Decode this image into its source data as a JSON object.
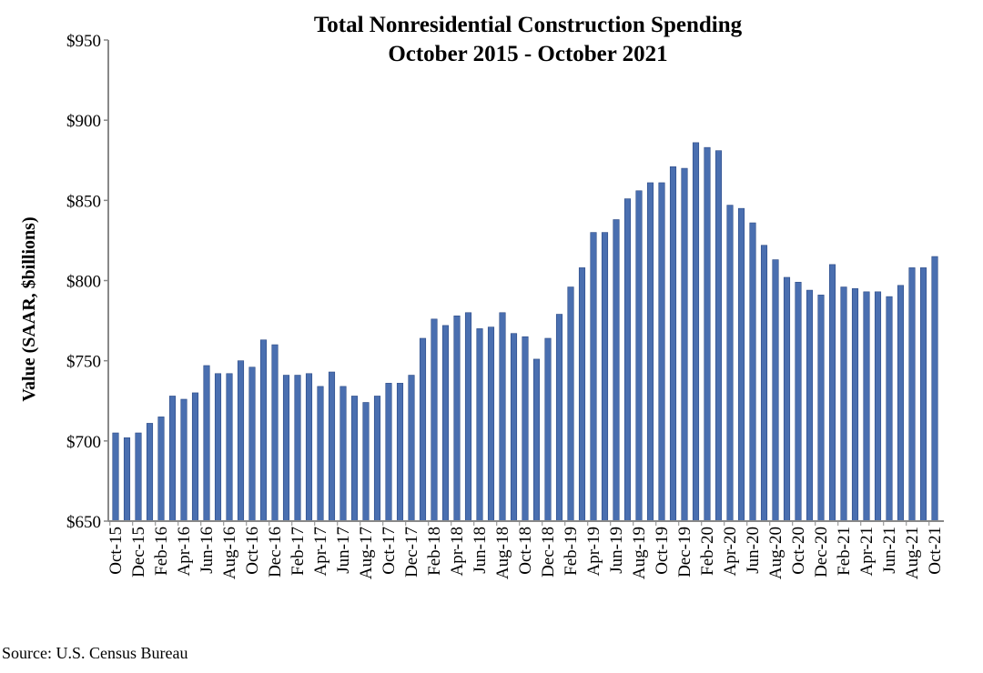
{
  "chart_data": {
    "type": "bar",
    "title": "Total Nonresidential Construction Spending",
    "subtitle": "October 2015 - October 2021",
    "xlabel": "",
    "ylabel": "Value (SAAR, $billions)",
    "ylim": [
      650,
      950
    ],
    "yticks": [
      "$650",
      "$700",
      "$750",
      "$800",
      "$850",
      "$900",
      "$950"
    ],
    "ytick_values": [
      650,
      700,
      750,
      800,
      850,
      900,
      950
    ],
    "grid": false,
    "legend": "none",
    "bar_color": "#4a6fb0",
    "categories": [
      "Oct-15",
      "Nov-15",
      "Dec-15",
      "Jan-16",
      "Feb-16",
      "Mar-16",
      "Apr-16",
      "May-16",
      "Jun-16",
      "Jul-16",
      "Aug-16",
      "Sep-16",
      "Oct-16",
      "Nov-16",
      "Dec-16",
      "Jan-17",
      "Feb-17",
      "Mar-17",
      "Apr-17",
      "May-17",
      "Jun-17",
      "Jul-17",
      "Aug-17",
      "Sep-17",
      "Oct-17",
      "Nov-17",
      "Dec-17",
      "Jan-18",
      "Feb-18",
      "Mar-18",
      "Apr-18",
      "May-18",
      "Jun-18",
      "Jul-18",
      "Aug-18",
      "Sep-18",
      "Oct-18",
      "Nov-18",
      "Dec-18",
      "Jan-19",
      "Feb-19",
      "Mar-19",
      "Apr-19",
      "May-19",
      "Jun-19",
      "Jul-19",
      "Aug-19",
      "Sep-19",
      "Oct-19",
      "Nov-19",
      "Dec-19",
      "Jan-20",
      "Feb-20",
      "Mar-20",
      "Apr-20",
      "May-20",
      "Jun-20",
      "Jul-20",
      "Aug-20",
      "Sep-20",
      "Oct-20",
      "Nov-20",
      "Dec-20",
      "Jan-21",
      "Feb-21",
      "Mar-21",
      "Apr-21",
      "May-21",
      "Jun-21",
      "Jul-21",
      "Aug-21",
      "Sep-21",
      "Oct-21"
    ],
    "values": [
      705,
      702,
      705,
      711,
      715,
      728,
      726,
      730,
      747,
      742,
      742,
      750,
      746,
      763,
      760,
      741,
      741,
      742,
      734,
      743,
      734,
      728,
      724,
      728,
      736,
      736,
      741,
      764,
      776,
      772,
      778,
      780,
      770,
      771,
      780,
      767,
      765,
      751,
      764,
      779,
      796,
      808,
      830,
      830,
      838,
      851,
      856,
      861,
      861,
      871,
      870,
      886,
      883,
      881,
      847,
      845,
      836,
      822,
      813,
      802,
      799,
      794,
      791,
      810,
      796,
      795,
      793,
      793,
      790,
      797,
      808,
      808,
      815
    ],
    "xtick_labels_shown": "every other month"
  },
  "source": "Source:  U.S. Census Bureau"
}
